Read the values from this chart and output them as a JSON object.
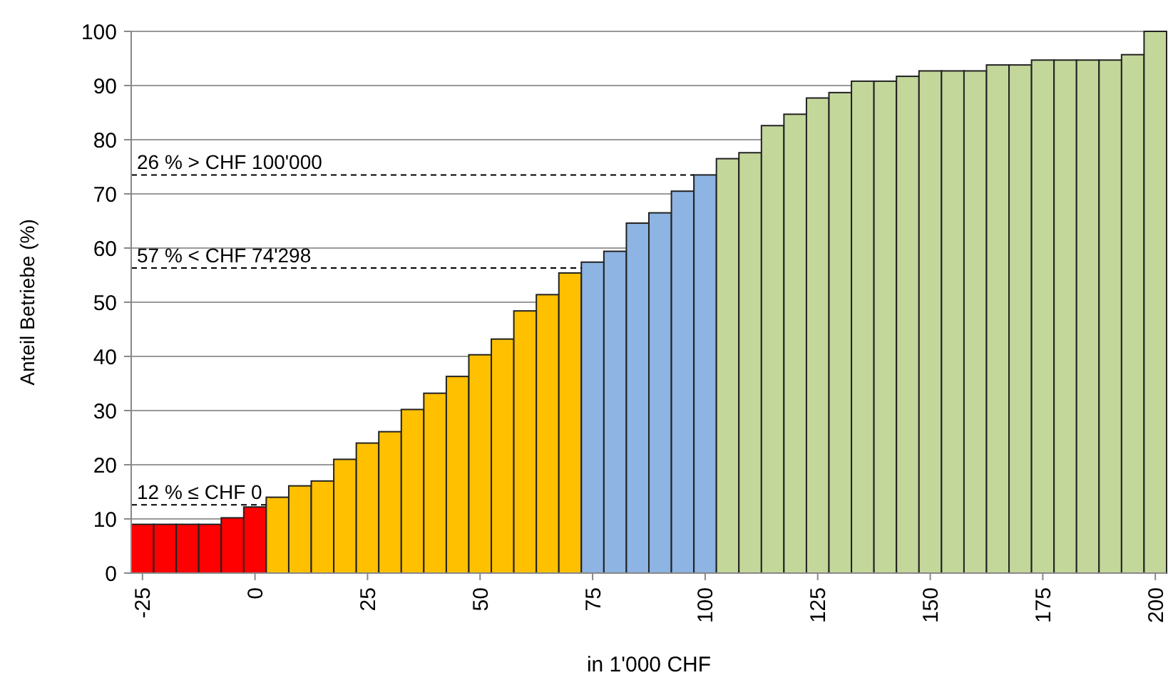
{
  "chart_data": {
    "type": "bar",
    "xlabel": "in 1'000 CHF",
    "ylabel": "Anteil Betriebe (%)",
    "categories": [
      "-25",
      null,
      null,
      null,
      null,
      "0",
      null,
      null,
      null,
      null,
      "25",
      null,
      null,
      null,
      null,
      "50",
      null,
      null,
      null,
      null,
      "75",
      null,
      null,
      null,
      null,
      "100",
      null,
      null,
      null,
      null,
      "125",
      null,
      null,
      null,
      null,
      "150",
      null,
      null,
      null,
      null,
      "175",
      null,
      null,
      null,
      null,
      "200"
    ],
    "values": [
      9,
      9,
      9,
      9,
      10.2,
      12.2,
      14,
      16.1,
      17,
      21,
      24,
      26.1,
      30.2,
      33.2,
      36.3,
      40.3,
      43.2,
      48.4,
      51.4,
      55.4,
      57.4,
      59.4,
      64.6,
      66.5,
      70.5,
      73.5,
      76.5,
      77.6,
      82.6,
      84.7,
      87.7,
      88.7,
      90.8,
      90.8,
      91.7,
      92.7,
      92.7,
      92.7,
      93.8,
      93.8,
      94.7,
      94.7,
      94.7,
      94.7,
      95.7,
      100
    ],
    "colors": [
      "#ff0000",
      "#ff0000",
      "#ff0000",
      "#ff0000",
      "#ff0000",
      "#ff0000",
      "#ffc000",
      "#ffc000",
      "#ffc000",
      "#ffc000",
      "#ffc000",
      "#ffc000",
      "#ffc000",
      "#ffc000",
      "#ffc000",
      "#ffc000",
      "#ffc000",
      "#ffc000",
      "#ffc000",
      "#ffc000",
      "#8db4e2",
      "#8db4e2",
      "#8db4e2",
      "#8db4e2",
      "#8db4e2",
      "#8db4e2",
      "#c4d79b",
      "#c4d79b",
      "#c4d79b",
      "#c4d79b",
      "#c4d79b",
      "#c4d79b",
      "#c4d79b",
      "#c4d79b",
      "#c4d79b",
      "#c4d79b",
      "#c4d79b",
      "#c4d79b",
      "#c4d79b",
      "#c4d79b",
      "#c4d79b",
      "#c4d79b",
      "#c4d79b",
      "#c4d79b",
      "#c4d79b",
      "#c4d79b"
    ],
    "ylim": [
      0,
      100
    ],
    "yticks": [
      0,
      10,
      20,
      30,
      40,
      50,
      60,
      70,
      80,
      90,
      100
    ],
    "grid": "y",
    "ref_lines": [
      {
        "axis": "y",
        "value": 73.5,
        "label": "26 % > CHF 100'000",
        "line_style": "dashed"
      },
      {
        "axis": "y",
        "value": 56.3,
        "label": "57 % < CHF 74'298",
        "line_style": "dashed"
      },
      {
        "axis": "y",
        "value": 12.6,
        "label": "12 % ≤ CHF 0",
        "line_style": "dashed"
      }
    ]
  }
}
